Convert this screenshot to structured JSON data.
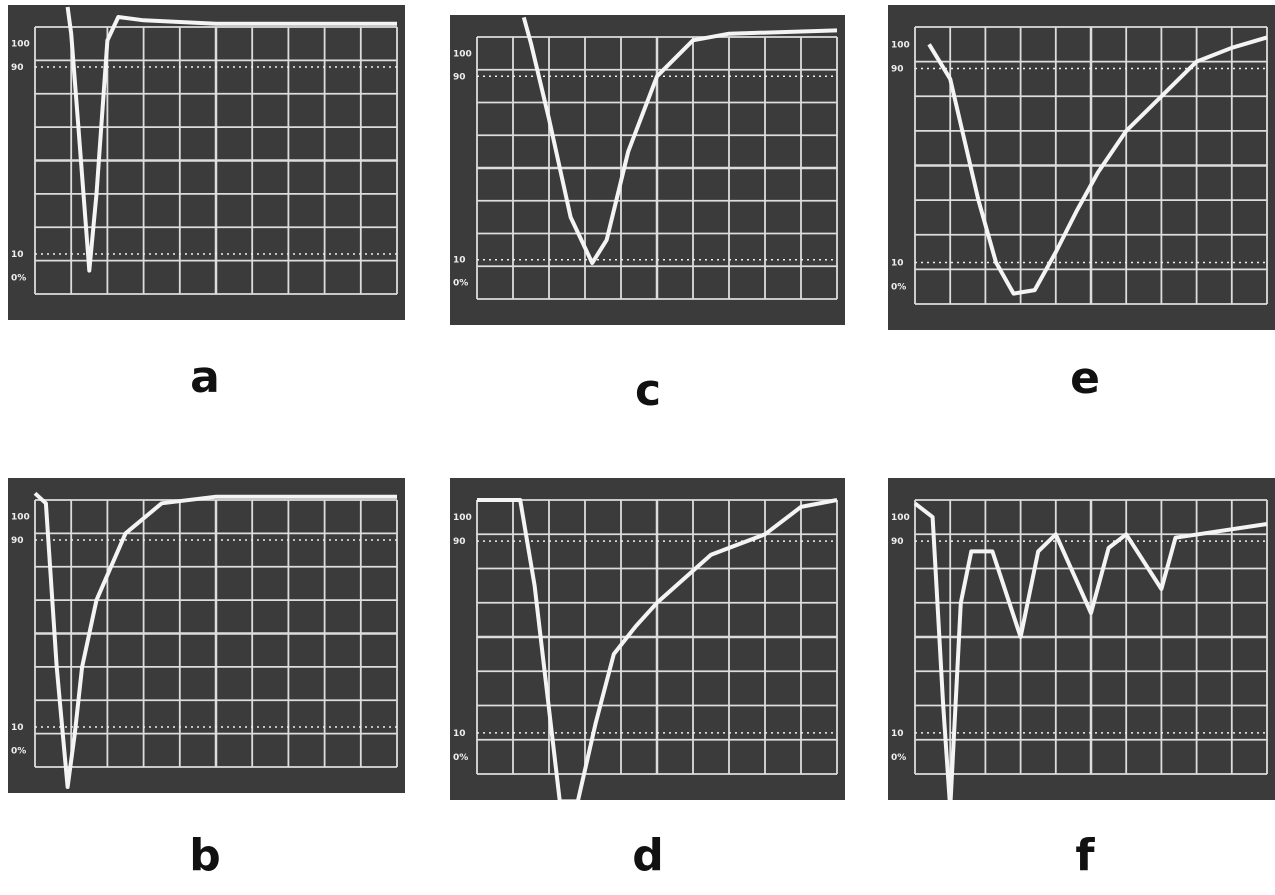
{
  "panels": [
    {
      "label": "a"
    },
    {
      "label": "b"
    },
    {
      "label": "c"
    },
    {
      "label": "d"
    },
    {
      "label": "e"
    },
    {
      "label": "f"
    }
  ],
  "scale_labels": [
    "100",
    "90",
    "10",
    "0%"
  ]
}
